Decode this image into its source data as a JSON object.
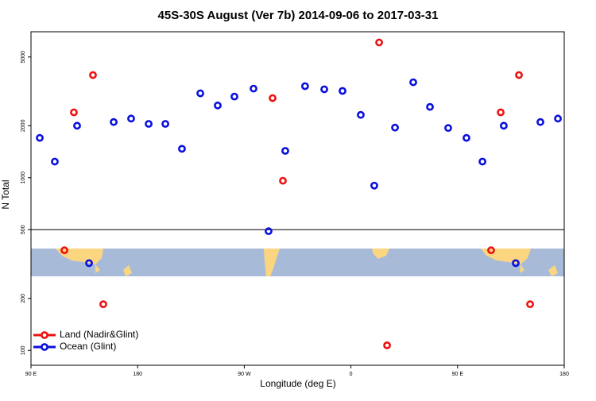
{
  "chart_data": {
    "type": "scatter",
    "title": "45S-30S August (Ver 7b)   2014-09-06 to 2017-03-31",
    "x_label": "Longitude (deg E)",
    "y_label": "N Total",
    "log_y": true,
    "legend": "bottom-left",
    "hline": 500,
    "xlim": [
      90,
      540
    ],
    "ylim": [
      82,
      7000
    ],
    "xticks": [
      {
        "value": 90,
        "label": "90 E"
      },
      180,
      {
        "value": 270,
        "label": "90 W"
      },
      {
        "value": 360,
        "label": "0"
      },
      {
        "value": 450,
        "label": "90 E"
      },
      {
        "value": 540,
        "label": "180"
      }
    ],
    "yticks": [
      100,
      200,
      500,
      1000,
      2000,
      5000
    ],
    "series": [
      {
        "name": "Land (Nadir&Glint)",
        "color": "#ee1111",
        "x": [
          118.2,
          126.2,
          142.3,
          151,
          293.9,
          302.6,
          383.8,
          390.5,
          478.3,
          486.4,
          501.8,
          511.2
        ],
        "values": [
          380,
          2390,
          3930,
          185,
          2890,
          960,
          6070,
          107,
          380,
          2390,
          3930,
          185
        ]
      },
      {
        "name": "Ocean (Glint)",
        "color": "#0a10dd",
        "x": [
          97.4,
          110.1,
          128.9,
          139,
          159.8,
          174.5,
          189.3,
          203.4,
          217.4,
          232.9,
          247.6,
          261.7,
          277.8,
          290.5,
          304.6,
          321.3,
          337.5,
          352.9,
          368.3,
          379.7,
          397.2,
          412.6,
          426.7,
          442.1,
          457.5,
          471,
          489,
          499.1,
          519.9,
          534.7
        ],
        "values": [
          1700,
          1240,
          2000,
          320,
          2100,
          2200,
          2050,
          2050,
          1470,
          3080,
          2620,
          2950,
          3280,
          490,
          1430,
          3390,
          3250,
          3180,
          2310,
          900,
          1950,
          3570,
          2570,
          1940,
          1700,
          1240,
          2000,
          320,
          2100,
          2200
        ]
      }
    ]
  }
}
